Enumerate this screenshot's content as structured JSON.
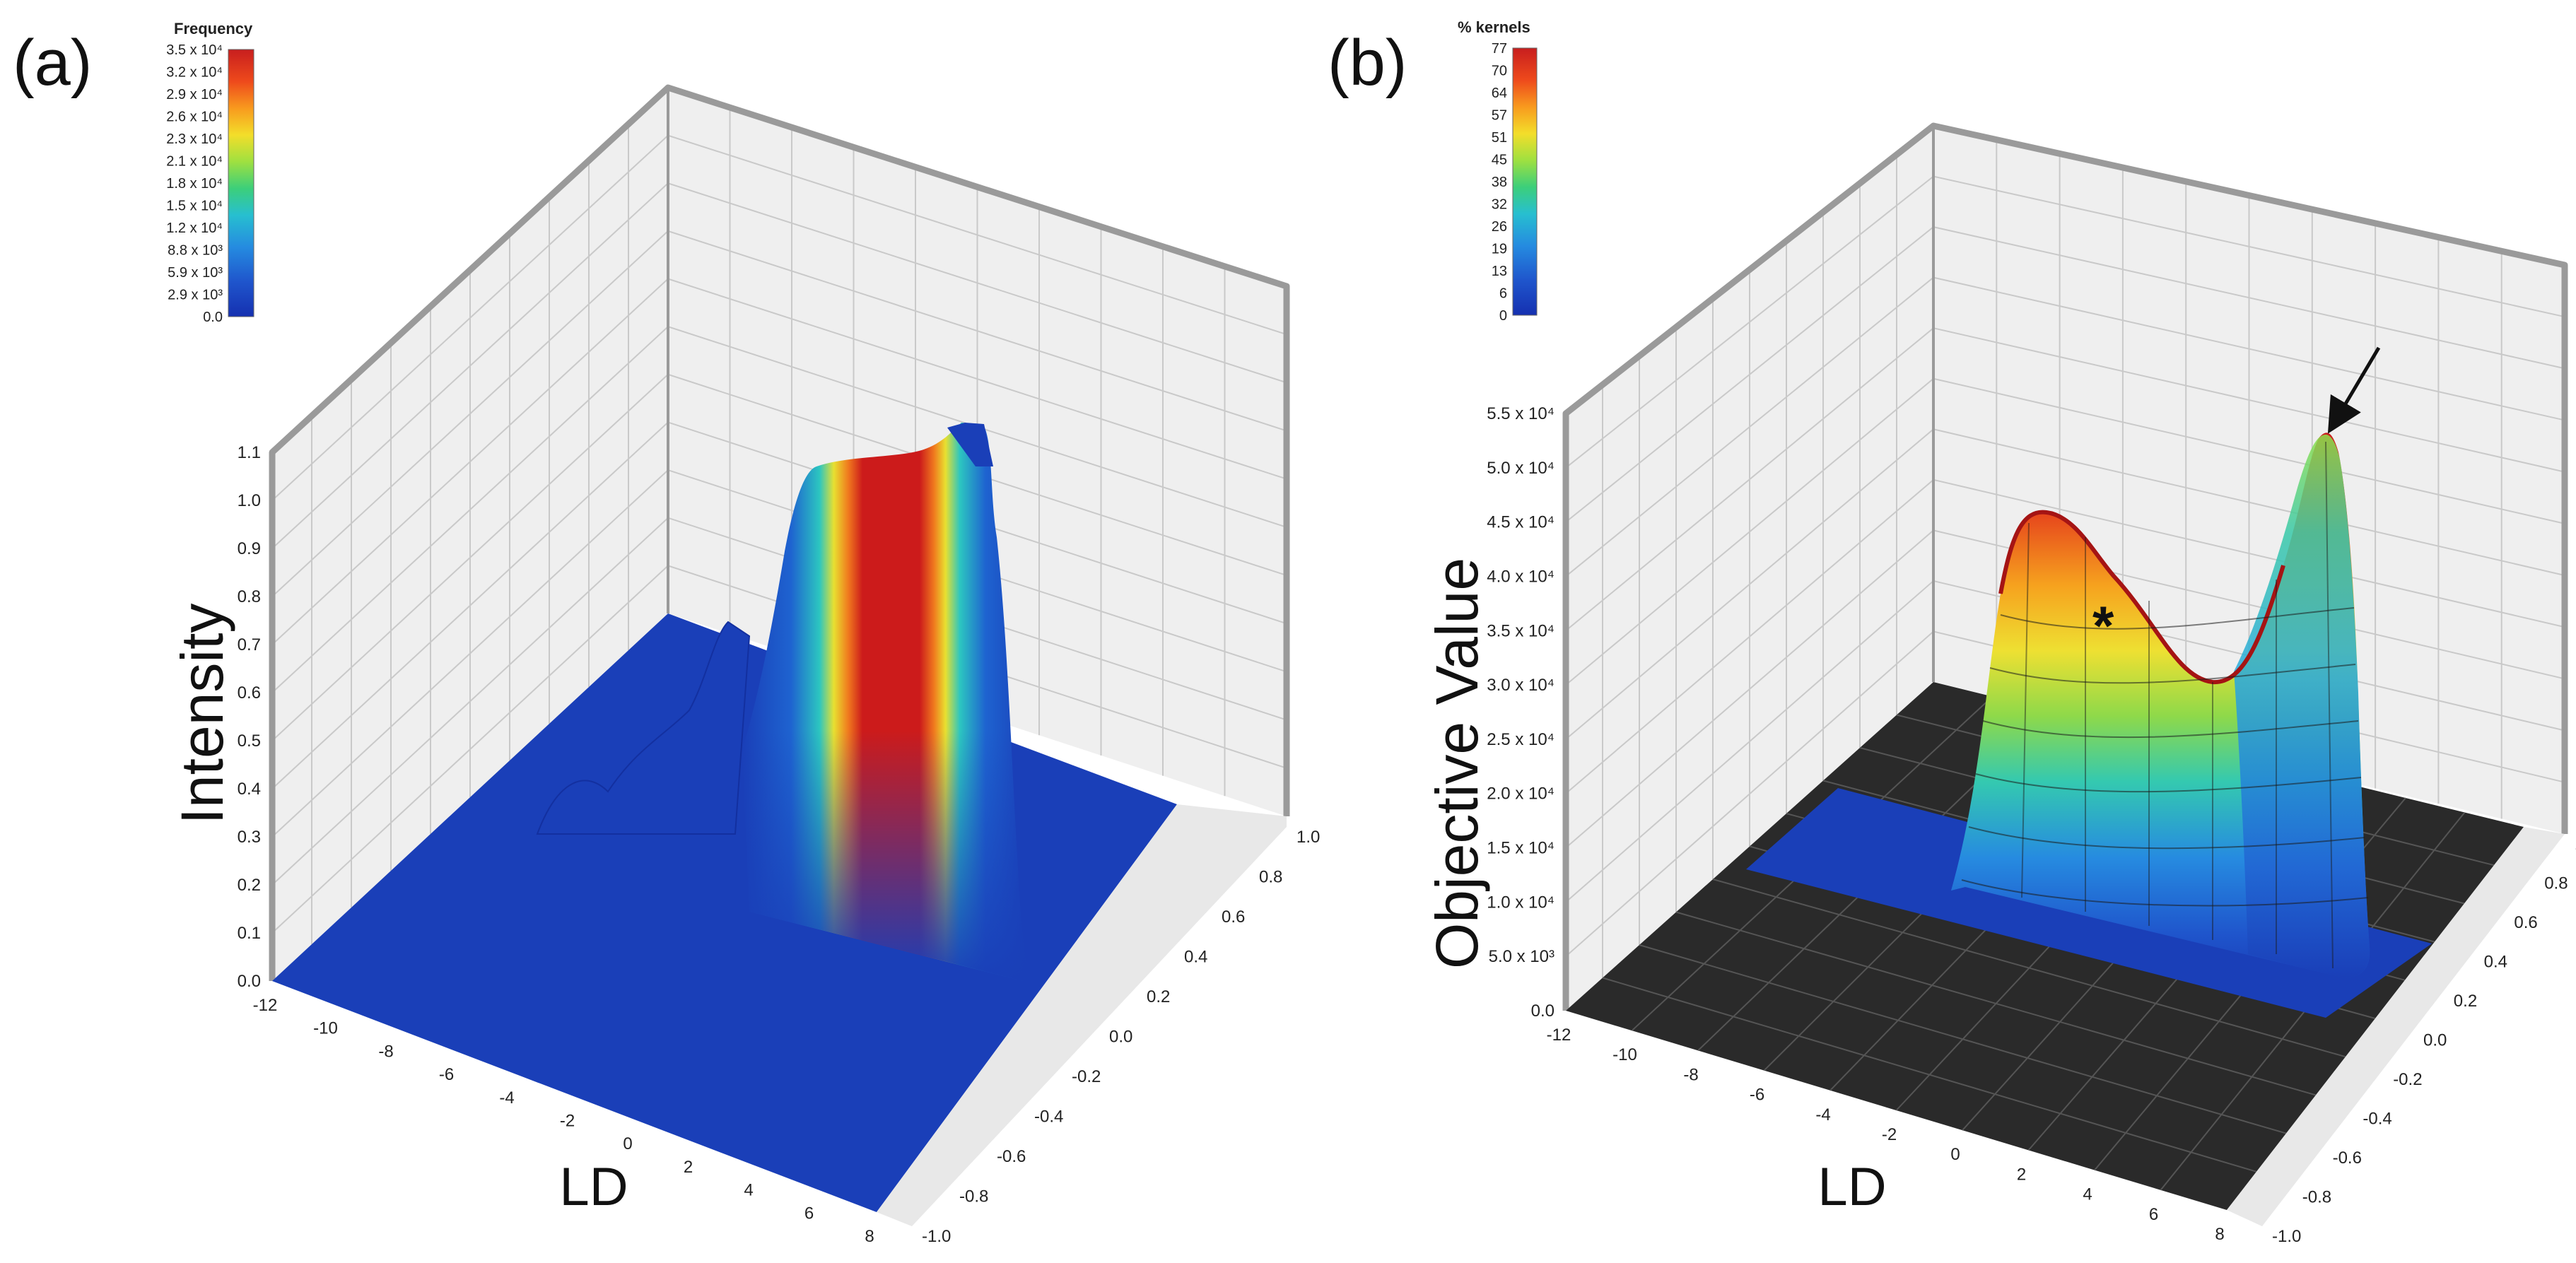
{
  "chart_data": [
    {
      "panel": "(a)",
      "type": "surface3d",
      "xlabel": "LD",
      "ylabel": "",
      "zlabel": "Intensity",
      "x_ticks": [
        "-12",
        "-10",
        "-8",
        "-6",
        "-4",
        "-2",
        "0",
        "2",
        "4",
        "6",
        "8"
      ],
      "y_ticks": [
        "-1.0",
        "-0.8",
        "-0.6",
        "-0.4",
        "-0.2",
        "0.0",
        "0.2",
        "0.4",
        "0.6",
        "0.8",
        "1.0"
      ],
      "z_ticks": [
        "0.0",
        "0.1",
        "0.2",
        "0.3",
        "0.4",
        "0.5",
        "0.6",
        "0.7",
        "0.8",
        "0.9",
        "1.0",
        "1.1"
      ],
      "xlim": [
        -12,
        8
      ],
      "ylim": [
        -1.0,
        1.0
      ],
      "zlim": [
        0,
        1.1
      ],
      "colorbar": {
        "title": "Frequency",
        "ticks": [
          "3.5 x 10⁴",
          "3.2 x 10⁴",
          "2.9 x 10⁴",
          "2.6 x 10⁴",
          "2.3 x 10⁴",
          "2.1 x 10⁴",
          "1.8 x 10⁴",
          "1.5 x 10⁴",
          "1.2 x 10⁴",
          "8.8 x 10³",
          "5.9 x 10³",
          "2.9 x 10³",
          "0.0"
        ],
        "colors": [
          "#c81e1e",
          "#e2311d",
          "#f0621c",
          "#f8a21e",
          "#f2d92a",
          "#b4e33a",
          "#5ad45c",
          "#2bc7a6",
          "#26b5de",
          "#2589de",
          "#2163d2",
          "#1b42c4",
          "#1530b0"
        ]
      },
      "wall_color": "#efefef",
      "floor_color": "#1a3fb8",
      "peak": {
        "x_range": [
          1.2,
          5.6
        ],
        "y_range": [
          -0.5,
          1.0
        ],
        "max_intensity": 1.05
      }
    },
    {
      "panel": "(b)",
      "type": "surface3d",
      "xlabel": "LD",
      "ylabel": "",
      "zlabel": "Objective Value",
      "x_ticks": [
        "-12",
        "-10",
        "-8",
        "-6",
        "-4",
        "-2",
        "0",
        "2",
        "4",
        "6",
        "8"
      ],
      "y_ticks": [
        "-1.0",
        "-0.8",
        "-0.6",
        "-0.4",
        "-0.2",
        "0.0",
        "0.2",
        "0.4",
        "0.6",
        "0.8",
        "1.0"
      ],
      "z_ticks": [
        "0.0",
        "5.0 x 10³",
        "1.0 x 10⁴",
        "1.5 x 10⁴",
        "2.0 x 10⁴",
        "2.5 x 10⁴",
        "3.0 x 10⁴",
        "3.5 x 10⁴",
        "4.0 x 10⁴",
        "4.5 x 10⁴",
        "5.0 x 10⁴",
        "5.5 x 10⁴"
      ],
      "xlim": [
        -12,
        8
      ],
      "ylim": [
        -1.0,
        1.0
      ],
      "zlim": [
        0,
        55000
      ],
      "colorbar": {
        "title": "% kernels",
        "ticks": [
          "77",
          "70",
          "64",
          "57",
          "51",
          "45",
          "38",
          "32",
          "26",
          "19",
          "13",
          "6",
          "0"
        ],
        "colors": [
          "#c81e1e",
          "#e2311d",
          "#f0621c",
          "#f8a21e",
          "#f2d92a",
          "#b4e33a",
          "#5ad45c",
          "#2bc7a6",
          "#26b5de",
          "#2589de",
          "#2163d2",
          "#1b42c4",
          "#1530b0"
        ]
      },
      "wall_color": "#efefef",
      "floor_color": "#2a2a2a",
      "annotations": [
        {
          "type": "star",
          "label": "*",
          "note": "local maximum ridge"
        },
        {
          "type": "arrow",
          "note": "global maximum peak"
        }
      ],
      "peaks": [
        {
          "value": 46000
        },
        {
          "value": 55000
        }
      ]
    }
  ]
}
